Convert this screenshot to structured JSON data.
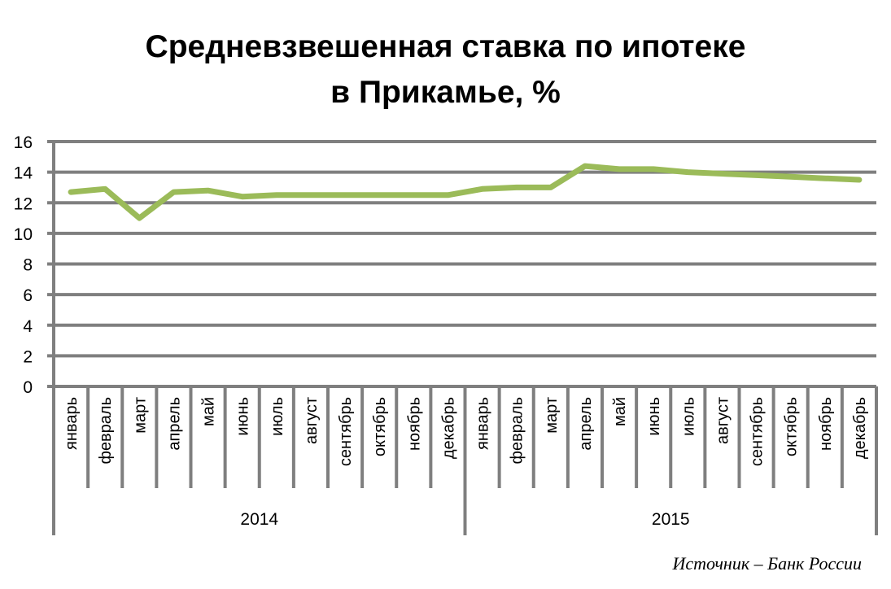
{
  "chart_data": {
    "type": "line",
    "title_line1": "Средневзвешенная ставка по ипотеке",
    "title_line2": "в Прикамье, %",
    "xlabel": "",
    "ylabel": "",
    "ylim": [
      0,
      16
    ],
    "yticks": [
      "0",
      "2",
      "4",
      "6",
      "8",
      "10",
      "12",
      "14",
      "16"
    ],
    "grid": true,
    "categories": [
      "январь",
      "февраль",
      "март",
      "апрель",
      "май",
      "июнь",
      "июль",
      "август",
      "сентябрь",
      "октябрь",
      "ноябрь",
      "декабрь",
      "январь",
      "февраль",
      "март",
      "апрель",
      "май",
      "июнь",
      "июль",
      "август",
      "сентябрь",
      "октябрь",
      "ноябрь",
      "декабрь"
    ],
    "groups": [
      {
        "label": "2014",
        "count": 12
      },
      {
        "label": "2015",
        "count": 12
      }
    ],
    "series": [
      {
        "values": [
          12.7,
          12.9,
          11.0,
          12.7,
          12.8,
          12.4,
          12.5,
          12.5,
          12.5,
          12.5,
          12.5,
          12.5,
          12.9,
          13.0,
          13.0,
          14.4,
          14.2,
          14.2,
          14.0,
          13.9,
          13.8,
          13.7,
          13.6,
          13.5
        ],
        "color": "#9bbb59"
      }
    ],
    "gridline_color": "#7f7f7f",
    "source": "Источник – Банк России"
  }
}
